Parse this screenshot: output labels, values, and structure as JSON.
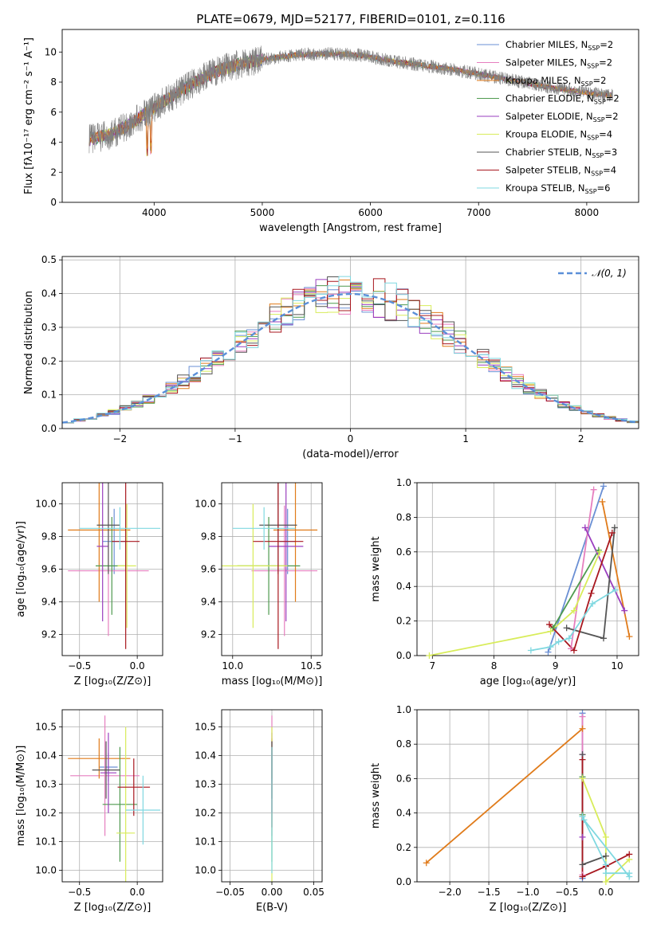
{
  "figure": {
    "title": "PLATE=0679, MJD=52177, FIBERID=0101, z=0.116"
  },
  "series_names": [
    "Chabrier MILES, N_SSP=2",
    "Salpeter MILES, N_SSP=2",
    "Kroupa MILES, N_SSP=2",
    "Chabrier ELODIE, N_SSP=2",
    "Salpeter ELODIE, N_SSP=2",
    "Kroupa ELODIE, N_SSP=4",
    "Chabrier STELIB, N_SSP=3",
    "Salpeter STELIB, N_SSP=4",
    "Kroupa STELIB, N_SSP=6"
  ],
  "colors": [
    "#6a8fd4",
    "#e67fbf",
    "#e07b1a",
    "#4f9a4f",
    "#9a3fbf",
    "#d8ec5a",
    "#555555",
    "#a8171f",
    "#7fd8e0"
  ],
  "chart_data": [
    {
      "id": "spectrum",
      "type": "line",
      "title": "PLATE=0679, MJD=52177, FIBERID=0101, z=0.116",
      "xlabel": "wavelength [Angstrom, rest frame]",
      "ylabel": "Flux [fλ10⁻¹⁷ erg cm⁻² s⁻¹ A⁻¹]",
      "xlim": [
        3150,
        8480
      ],
      "ylim": [
        0,
        11.5
      ],
      "xticks": [
        4000,
        5000,
        6000,
        7000,
        8000
      ],
      "yticks": [
        0,
        2,
        4,
        6,
        8,
        10
      ],
      "legend": "top-right",
      "continuum": [
        [
          3400,
          4.2
        ],
        [
          3600,
          4.5
        ],
        [
          3800,
          5.3
        ],
        [
          4000,
          6.3
        ],
        [
          4200,
          7.2
        ],
        [
          4400,
          8.1
        ],
        [
          4600,
          8.8
        ],
        [
          4800,
          9.2
        ],
        [
          5000,
          9.5
        ],
        [
          5300,
          9.8
        ],
        [
          5600,
          9.9
        ],
        [
          5900,
          9.8
        ],
        [
          6200,
          9.4
        ],
        [
          6500,
          9.1
        ],
        [
          6800,
          8.8
        ],
        [
          7100,
          8.4
        ],
        [
          7400,
          8.0
        ],
        [
          7700,
          7.6
        ],
        [
          8000,
          7.3
        ],
        [
          8240,
          7.1
        ]
      ]
    },
    {
      "id": "residuals",
      "type": "line",
      "xlabel": "(data-model)/error",
      "ylabel": "Normed distribution",
      "xlim": [
        -2.5,
        2.5
      ],
      "ylim": [
        0,
        0.51
      ],
      "xticks": [
        -2,
        -1,
        0,
        1,
        2
      ],
      "yticks": [
        0.0,
        0.1,
        0.2,
        0.3,
        0.4,
        0.5
      ],
      "legend": "top-right",
      "normal_label": "𝒩(0, 1)",
      "bin_width": 0.1
    },
    {
      "id": "age_vs_Z",
      "type": "scatter",
      "xlabel": "Z [log₁₀(Z/Z⊙)]",
      "ylabel": "age  [log₁₀(age/yr)]",
      "xlim": [
        -0.65,
        0.22
      ],
      "ylim": [
        9.07,
        10.13
      ],
      "xticks": [
        -0.5,
        0.0
      ],
      "yticks": [
        9.2,
        9.4,
        9.6,
        9.8,
        10.0
      ],
      "points": [
        {
          "x": -0.2,
          "y": 9.77,
          "ex": 0.1,
          "ey": 0.2
        },
        {
          "x": -0.25,
          "y": 9.59,
          "ex": 0.35,
          "ey": 0.4
        },
        {
          "x": -0.33,
          "y": 9.84,
          "ex": 0.27,
          "ey": 0.44
        },
        {
          "x": -0.22,
          "y": 9.62,
          "ex": 0.14,
          "ey": 0.3
        },
        {
          "x": -0.3,
          "y": 9.74,
          "ex": 0.05,
          "ey": 0.46
        },
        {
          "x": -0.09,
          "y": 9.62,
          "ex": 0.08,
          "ey": 0.38
        },
        {
          "x": -0.25,
          "y": 9.87,
          "ex": 0.1,
          "ey": 0.3
        },
        {
          "x": -0.1,
          "y": 9.77,
          "ex": 0.12,
          "ey": 0.66
        },
        {
          "x": -0.15,
          "y": 9.85,
          "ex": 0.35,
          "ey": 0.13
        }
      ]
    },
    {
      "id": "age_vs_mass",
      "type": "scatter",
      "xlabel": "mass [log₁₀(M/M⊙)]",
      "ylabel": "",
      "xlim": [
        9.93,
        10.57
      ],
      "ylim": [
        9.07,
        10.13
      ],
      "xticks": [
        10.0,
        10.5
      ],
      "yticks": [
        9.2,
        9.4,
        9.6,
        9.8,
        10.0
      ],
      "points": [
        {
          "x": 10.35,
          "y": 9.77,
          "ex": 0.05,
          "ey": 0.2
        },
        {
          "x": 10.33,
          "y": 9.59,
          "ex": 0.21,
          "ey": 0.4
        },
        {
          "x": 10.4,
          "y": 9.84,
          "ex": 0.14,
          "ey": 0.44
        },
        {
          "x": 10.23,
          "y": 9.62,
          "ex": 0.2,
          "ey": 0.3
        },
        {
          "x": 10.34,
          "y": 9.74,
          "ex": 0.11,
          "ey": 0.46
        },
        {
          "x": 10.13,
          "y": 9.62,
          "ex": 0.22,
          "ey": 0.38
        },
        {
          "x": 10.29,
          "y": 9.87,
          "ex": 0.12,
          "ey": 0.3
        },
        {
          "x": 10.29,
          "y": 9.77,
          "ex": 0.16,
          "ey": 0.66
        },
        {
          "x": 10.2,
          "y": 9.85,
          "ex": 0.2,
          "ey": 0.13
        }
      ]
    },
    {
      "id": "weight_vs_age",
      "type": "line",
      "xlabel": "age  [log₁₀(age/yr)]",
      "ylabel": "mass weight",
      "xlim": [
        6.75,
        10.35
      ],
      "ylim": [
        0,
        1.0
      ],
      "xticks": [
        7,
        8,
        9,
        10
      ],
      "yticks": [
        0.0,
        0.2,
        0.4,
        0.6,
        0.8,
        1.0
      ],
      "series": [
        {
          "name": "Chabrier MILES, N_SSP=2",
          "points": [
            [
              8.88,
              0.02
            ],
            [
              9.78,
              0.98
            ]
          ]
        },
        {
          "name": "Salpeter MILES, N_SSP=2",
          "points": [
            [
              9.25,
              0.04
            ],
            [
              9.62,
              0.96
            ]
          ]
        },
        {
          "name": "Kroupa MILES, N_SSP=2",
          "points": [
            [
              9.76,
              0.89
            ],
            [
              10.2,
              0.11
            ]
          ]
        },
        {
          "name": "Chabrier ELODIE, N_SSP=2",
          "points": [
            [
              8.96,
              0.16
            ],
            [
              9.7,
              0.61
            ]
          ]
        },
        {
          "name": "Salpeter ELODIE, N_SSP=2",
          "points": [
            [
              9.48,
              0.74
            ],
            [
              10.12,
              0.26
            ]
          ]
        },
        {
          "name": "Kroupa ELODIE, N_SSP=4",
          "points": [
            [
              6.95,
              0.0
            ],
            [
              8.92,
              0.14
            ],
            [
              9.3,
              0.26
            ],
            [
              9.72,
              0.6
            ]
          ]
        },
        {
          "name": "Chabrier STELIB, N_SSP=3",
          "points": [
            [
              9.18,
              0.16
            ],
            [
              9.78,
              0.1
            ],
            [
              9.96,
              0.74
            ]
          ]
        },
        {
          "name": "Salpeter STELIB, N_SSP=4",
          "points": [
            [
              8.9,
              0.18
            ],
            [
              9.3,
              0.03
            ],
            [
              9.58,
              0.36
            ],
            [
              9.92,
              0.71
            ]
          ]
        },
        {
          "name": "Kroupa STELIB, N_SSP=6",
          "points": [
            [
              8.6,
              0.03
            ],
            [
              8.92,
              0.05
            ],
            [
              9.05,
              0.08
            ],
            [
              9.22,
              0.1
            ],
            [
              9.6,
              0.3
            ],
            [
              9.97,
              0.38
            ]
          ]
        }
      ]
    },
    {
      "id": "mass_vs_Z",
      "type": "scatter",
      "xlabel": "Z [log₁₀(Z/Z⊙)]",
      "ylabel": "mass [log₁₀(M/M⊙)]",
      "xlim": [
        -0.65,
        0.22
      ],
      "ylim": [
        9.96,
        10.56
      ],
      "xticks": [
        -0.5,
        0.0
      ],
      "yticks": [
        10.0,
        10.1,
        10.2,
        10.3,
        10.4,
        10.5
      ],
      "points": [
        {
          "x": -0.25,
          "y": 10.36,
          "ex": 0.08,
          "ey": 0.05
        },
        {
          "x": -0.28,
          "y": 10.33,
          "ex": 0.3,
          "ey": 0.21
        },
        {
          "x": -0.33,
          "y": 10.39,
          "ex": 0.27,
          "ey": 0.07
        },
        {
          "x": -0.15,
          "y": 10.23,
          "ex": 0.15,
          "ey": 0.2
        },
        {
          "x": -0.25,
          "y": 10.34,
          "ex": 0.07,
          "ey": 0.14
        },
        {
          "x": -0.1,
          "y": 10.13,
          "ex": 0.08,
          "ey": 0.37
        },
        {
          "x": -0.27,
          "y": 10.35,
          "ex": 0.12,
          "ey": 0.1
        },
        {
          "x": -0.03,
          "y": 10.29,
          "ex": 0.14,
          "ey": 0.1
        },
        {
          "x": 0.05,
          "y": 10.21,
          "ex": 0.15,
          "ey": 0.12
        }
      ]
    },
    {
      "id": "mass_vs_EBV",
      "type": "scatter",
      "xlabel": "E(B-V)",
      "ylabel": "",
      "xlim": [
        -0.06,
        0.06
      ],
      "ylim": [
        9.96,
        10.56
      ],
      "xticks": [
        -0.05,
        0.0,
        0.05
      ],
      "yticks": [
        10.0,
        10.1,
        10.2,
        10.3,
        10.4,
        10.5
      ],
      "points": [
        {
          "x": 0.0,
          "y": 10.36,
          "ex": 0,
          "ey": 0.05
        },
        {
          "x": 0.0,
          "y": 10.33,
          "ex": 0,
          "ey": 0.21
        },
        {
          "x": 0.0,
          "y": 10.39,
          "ex": 0,
          "ey": 0.07
        },
        {
          "x": 0.0,
          "y": 10.23,
          "ex": 0,
          "ey": 0.2
        },
        {
          "x": 0.0,
          "y": 10.34,
          "ex": 0,
          "ey": 0.14
        },
        {
          "x": 0.0,
          "y": 10.13,
          "ex": 0,
          "ey": 0.37
        },
        {
          "x": 0.0,
          "y": 10.35,
          "ex": 0,
          "ey": 0.1
        },
        {
          "x": 0.0,
          "y": 10.29,
          "ex": 0,
          "ey": 0.14
        },
        {
          "x": 0.0,
          "y": 10.21,
          "ex": 0,
          "ey": 0.22
        }
      ]
    },
    {
      "id": "weight_vs_Z",
      "type": "line",
      "xlabel": "Z [log₁₀(Z/Z⊙)]",
      "ylabel": "mass weight",
      "xlim": [
        -2.42,
        0.42
      ],
      "ylim": [
        0,
        1.0
      ],
      "xticks": [
        -2.0,
        -1.5,
        -1.0,
        -0.5,
        0.0
      ],
      "yticks": [
        0.0,
        0.2,
        0.4,
        0.6,
        0.8,
        1.0
      ],
      "series": [
        {
          "name": "Chabrier MILES, N_SSP=2",
          "points": [
            [
              -0.3,
              0.02
            ],
            [
              -0.3,
              0.98
            ]
          ]
        },
        {
          "name": "Salpeter MILES, N_SSP=2",
          "points": [
            [
              -0.3,
              0.04
            ],
            [
              -0.3,
              0.96
            ]
          ]
        },
        {
          "name": "Kroupa MILES, N_SSP=2",
          "points": [
            [
              -2.3,
              0.11
            ],
            [
              -0.3,
              0.89
            ]
          ]
        },
        {
          "name": "Chabrier ELODIE, N_SSP=2",
          "points": [
            [
              -0.3,
              0.39
            ],
            [
              -0.3,
              0.61
            ]
          ]
        },
        {
          "name": "Salpeter ELODIE, N_SSP=2",
          "points": [
            [
              -0.3,
              0.26
            ],
            [
              -0.3,
              0.74
            ]
          ]
        },
        {
          "name": "Kroupa ELODIE, N_SSP=4",
          "points": [
            [
              -0.3,
              0.6
            ],
            [
              0.0,
              0.26
            ],
            [
              0.0,
              0.0
            ],
            [
              0.3,
              0.13
            ]
          ]
        },
        {
          "name": "Chabrier STELIB, N_SSP=3",
          "points": [
            [
              -0.3,
              0.74
            ],
            [
              -0.3,
              0.1
            ],
            [
              0.0,
              0.15
            ]
          ]
        },
        {
          "name": "Salpeter STELIB, N_SSP=4",
          "points": [
            [
              -0.3,
              0.71
            ],
            [
              -0.3,
              0.03
            ],
            [
              0.0,
              0.09
            ],
            [
              0.3,
              0.16
            ]
          ]
        },
        {
          "name": "Kroupa STELIB, N_SSP=6",
          "points": [
            [
              -0.3,
              0.38
            ],
            [
              0.0,
              0.1
            ],
            [
              0.0,
              0.05
            ],
            [
              0.3,
              0.05
            ],
            [
              0.3,
              0.03
            ],
            [
              -0.28,
              0.36
            ]
          ]
        }
      ]
    }
  ]
}
